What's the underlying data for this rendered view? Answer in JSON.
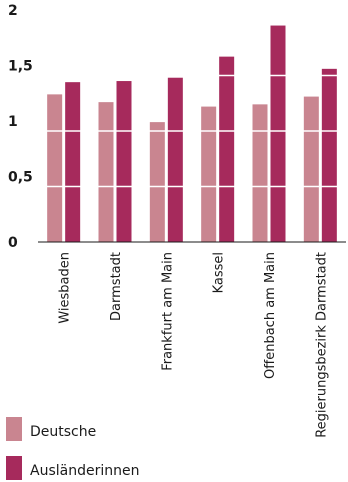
{
  "chart_data": {
    "type": "bar",
    "categories": [
      "Wiesbaden",
      "Darmstadt",
      "Frankfurt am Main",
      "Kassel",
      "Offenbach am Main",
      "Regierungsbezirk Darmstadt"
    ],
    "series": [
      {
        "name": "Deutsche",
        "color": "#c98590",
        "values": [
          1.33,
          1.26,
          1.08,
          1.22,
          1.24,
          1.31
        ]
      },
      {
        "name": "Ausländerinnen",
        "color": "#a62a5c",
        "values": [
          1.44,
          1.45,
          1.48,
          1.67,
          1.95,
          1.56
        ]
      }
    ],
    "yticks": [
      "0",
      "0,5",
      "1",
      "1,5",
      "2"
    ],
    "ylim": [
      0,
      2
    ],
    "title": "",
    "xlabel": "",
    "ylabel": "",
    "grid": "white horizontal lines at ticks",
    "legend": "bottom-left"
  }
}
